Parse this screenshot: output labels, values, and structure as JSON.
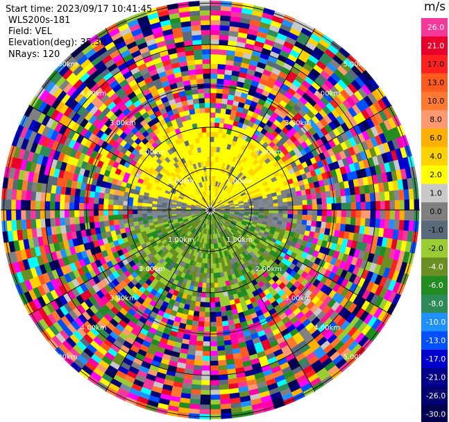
{
  "header": {
    "start_time": "Start time: 2023/09/17 10:41:45",
    "instrument": "WLS200s-181",
    "field": "Field: VEL",
    "elevation": "Elevation(deg): 35.30",
    "nrays": "NRays: 120"
  },
  "colorbar": {
    "title": "m/s",
    "levels": [
      "26.0",
      "21.0",
      "17.0",
      "13.0",
      "10.0",
      "8.0",
      "6.0",
      "4.0",
      "2.0",
      "1.0",
      "0.0",
      "-1.0",
      "-2.0",
      "-4.0",
      "-6.0",
      "-8.0",
      "-10.0",
      "-13.0",
      "-17.0",
      "-21.0",
      "-26.0",
      "-30.0"
    ],
    "colors": [
      "#f5389a",
      "#e8002a",
      "#ff2020",
      "#ff5a20",
      "#ff7a30",
      "#ff9a70",
      "#ffb000",
      "#ffd200",
      "#ffff00",
      "#c8c8c8",
      "#808080",
      "#5a6a7a",
      "#9acd32",
      "#6b8e23",
      "#228b22",
      "#2e8b57",
      "#1e90ff",
      "#0050ff",
      "#0000cd",
      "#00008b",
      "#000070",
      "#000050"
    ]
  },
  "chart_data": {
    "type": "heatmap",
    "subtype": "polar PPI radar scan",
    "field": "VEL",
    "units": "m/s",
    "nrays": 120,
    "range_rings_km": [
      1,
      2,
      3,
      4,
      5
    ],
    "ring_labels": [
      "1.00km",
      "2.00km",
      "3.00km",
      "4.00km",
      "5.00km"
    ],
    "spoke_angles_deg": [
      0,
      30,
      60,
      90,
      120,
      150,
      180,
      210,
      240,
      270,
      300,
      330
    ],
    "colorbar_range": [
      -30.0,
      26.0
    ],
    "pattern": {
      "north_near_range": "positive 1.0 to 4.0 m/s (yellow)",
      "south_near_range": "negative -2.0 to -6.0 m/s (green)",
      "east_west_near_range": "approx 0 m/s (gray)",
      "far_range": "noisy multicolor beyond ~2 km"
    }
  }
}
